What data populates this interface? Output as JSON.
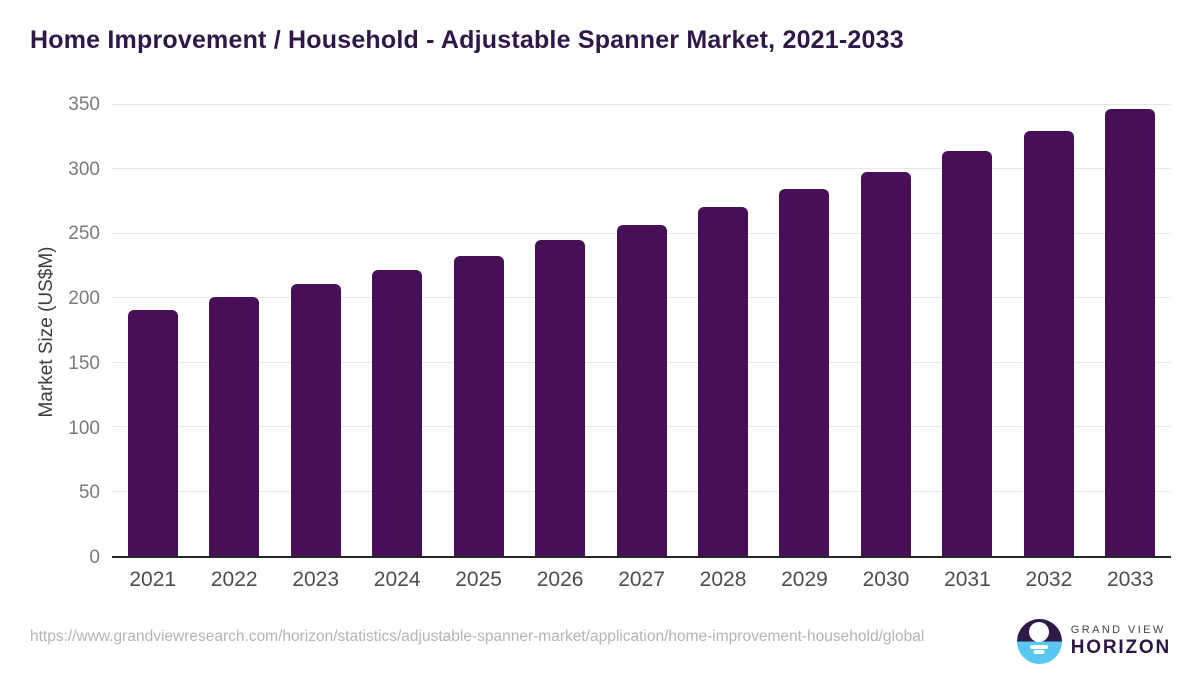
{
  "chart_data": {
    "type": "bar",
    "title": "Home Improvement / Household - Adjustable Spanner Market, 2021-2033",
    "categories": [
      "2021",
      "2022",
      "2023",
      "2024",
      "2025",
      "2026",
      "2027",
      "2028",
      "2029",
      "2030",
      "2031",
      "2032",
      "2033"
    ],
    "values": [
      191,
      201,
      211,
      222,
      233,
      245,
      257,
      271,
      285,
      298,
      314,
      330,
      347
    ],
    "ylabel": "Market Size (US$M)",
    "xlabel": "",
    "ylim": [
      0,
      350
    ],
    "yticks": [
      0,
      50,
      100,
      150,
      200,
      250,
      300,
      350
    ],
    "grid": "horizontal",
    "legend": "none",
    "bar_color": "#471056",
    "title_color": "#2f1747",
    "gridline_color": "#e7e7e7",
    "axis_line_color": "#262626",
    "ytick_label_color": "#7a7a7a",
    "xtick_label_color": "#4d4d4d"
  },
  "footer": {
    "source_url": "https://www.grandviewresearch.com/horizon/statistics/adjustable-spanner-market/application/home-improvement-household/global",
    "logo": {
      "icon": "horizon-sun-icon",
      "brand_top": "GRAND VIEW",
      "brand_bottom": "HORIZON",
      "icon_top_color": "#2d1a47",
      "icon_bottom_color": "#5ac7f2"
    }
  }
}
